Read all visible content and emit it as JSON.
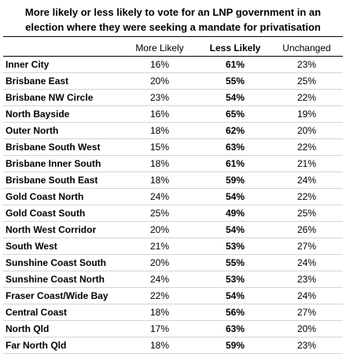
{
  "title_lines": [
    "More likely or less likely to vote for an LNP government in an",
    "election where they were seeking a mandate for privatisation"
  ],
  "columns": [
    "More Likely",
    "Less Likely",
    "Unchanged"
  ],
  "chart_data": {
    "type": "table",
    "title": "More likely or less likely to vote for an LNP government in an election where they were seeking a mandate for privatisation",
    "columns": [
      "More Likely",
      "Less Likely",
      "Unchanged"
    ],
    "rows": [
      {
        "region": "Inner City",
        "more_likely": "16%",
        "less_likely": "61%",
        "unchanged": "23%"
      },
      {
        "region": "Brisbane East",
        "more_likely": "20%",
        "less_likely": "55%",
        "unchanged": "25%"
      },
      {
        "region": "Brisbane NW Circle",
        "more_likely": "23%",
        "less_likely": "54%",
        "unchanged": "22%"
      },
      {
        "region": "North Bayside",
        "more_likely": "16%",
        "less_likely": "65%",
        "unchanged": "19%"
      },
      {
        "region": "Outer North",
        "more_likely": "18%",
        "less_likely": "62%",
        "unchanged": "20%"
      },
      {
        "region": "Brisbane South West",
        "more_likely": "15%",
        "less_likely": "63%",
        "unchanged": "22%"
      },
      {
        "region": "Brisbane Inner South",
        "more_likely": "18%",
        "less_likely": "61%",
        "unchanged": "21%"
      },
      {
        "region": "Brisbane South East",
        "more_likely": "18%",
        "less_likely": "59%",
        "unchanged": "24%"
      },
      {
        "region": "Gold Coast North",
        "more_likely": "24%",
        "less_likely": "54%",
        "unchanged": "22%"
      },
      {
        "region": "Gold Coast South",
        "more_likely": "25%",
        "less_likely": "49%",
        "unchanged": "25%"
      },
      {
        "region": "North West Corridor",
        "more_likely": "20%",
        "less_likely": "54%",
        "unchanged": "26%"
      },
      {
        "region": "South West",
        "more_likely": "21%",
        "less_likely": "53%",
        "unchanged": "27%"
      },
      {
        "region": "Sunshine Coast South",
        "more_likely": "20%",
        "less_likely": "55%",
        "unchanged": "24%"
      },
      {
        "region": "Sunshine Coast North",
        "more_likely": "24%",
        "less_likely": "53%",
        "unchanged": "23%"
      },
      {
        "region": "Fraser Coast/Wide Bay",
        "more_likely": "22%",
        "less_likely": "54%",
        "unchanged": "24%"
      },
      {
        "region": "Central Coast",
        "more_likely": "18%",
        "less_likely": "56%",
        "unchanged": "27%"
      },
      {
        "region": "North Qld",
        "more_likely": "17%",
        "less_likely": "63%",
        "unchanged": "20%"
      },
      {
        "region": "Far North Qld",
        "more_likely": "18%",
        "less_likely": "59%",
        "unchanged": "23%"
      }
    ]
  }
}
